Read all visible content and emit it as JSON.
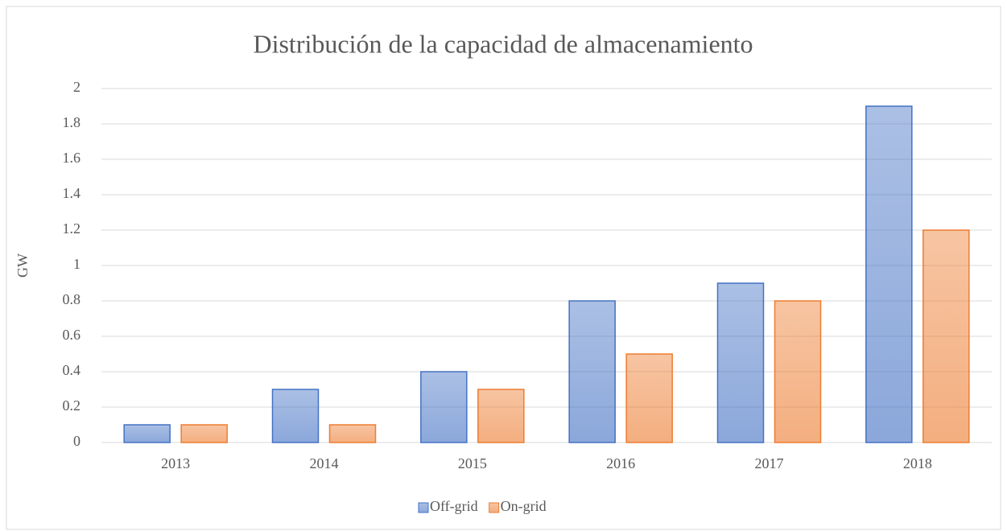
{
  "chart_data": {
    "type": "bar",
    "title": "Distribución de la capacidad de almacenamiento",
    "ylabel": "GW",
    "categories": [
      "2013",
      "2014",
      "2015",
      "2016",
      "2017",
      "2018"
    ],
    "series": [
      {
        "name": "Off-grid",
        "color": "#4472c4",
        "values": [
          0.1,
          0.3,
          0.4,
          0.8,
          0.9,
          1.9
        ]
      },
      {
        "name": "On-grid",
        "color": "#ed7d31",
        "values": [
          0.1,
          0.1,
          0.3,
          0.5,
          0.8,
          1.2
        ]
      }
    ],
    "ylim": [
      0,
      2
    ],
    "yticks": [
      0,
      0.2,
      0.4,
      0.6,
      0.8,
      1,
      1.2,
      1.4,
      1.6,
      1.8,
      2
    ],
    "grid": true,
    "legend": "bottom"
  }
}
